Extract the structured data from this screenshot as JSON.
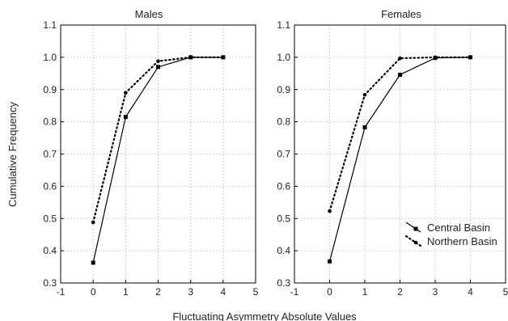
{
  "chart_data": [
    {
      "type": "line",
      "title": "Males",
      "xlim": [
        -1,
        5
      ],
      "ylim": [
        0.3,
        1.1
      ],
      "x_ticks": [
        "-1",
        "0",
        "1",
        "2",
        "3",
        "4",
        "5"
      ],
      "y_ticks": [
        "0.3",
        "0.4",
        "0.5",
        "0.6",
        "0.7",
        "0.8",
        "0.9",
        "1.0",
        "1.1"
      ],
      "grid": true,
      "series": [
        {
          "name": "Central Basin",
          "style": "solid",
          "marker": "square",
          "x": [
            0,
            1,
            2,
            3,
            4
          ],
          "values": [
            0.363,
            0.815,
            0.97,
            1.0,
            1.0
          ]
        },
        {
          "name": "Northern Basin",
          "style": "dotted",
          "marker": "circle",
          "x": [
            0,
            1,
            2,
            3,
            4
          ],
          "values": [
            0.488,
            0.89,
            0.988,
            1.0,
            1.0
          ]
        }
      ]
    },
    {
      "type": "line",
      "title": "Females",
      "xlim": [
        -1,
        5
      ],
      "ylim": [
        0.3,
        1.1
      ],
      "x_ticks": [
        "-1",
        "0",
        "1",
        "2",
        "3",
        "4",
        "5"
      ],
      "y_ticks": [
        "0.3",
        "0.4",
        "0.5",
        "0.6",
        "0.7",
        "0.8",
        "0.9",
        "1.0",
        "1.1"
      ],
      "grid": true,
      "legend": "right-lower",
      "series": [
        {
          "name": "Central Basin",
          "style": "solid",
          "marker": "square",
          "x": [
            0,
            1,
            2,
            3,
            4
          ],
          "values": [
            0.367,
            0.783,
            0.946,
            0.998,
            1.0
          ]
        },
        {
          "name": "Northern Basin",
          "style": "dotted",
          "marker": "circle",
          "x": [
            0,
            1,
            2,
            3,
            4
          ],
          "values": [
            0.523,
            0.884,
            0.997,
            1.0,
            1.0
          ]
        }
      ]
    }
  ],
  "ylabel": "Cumulative Frequency",
  "xlabel": "Fluctuating Asymmetry Absolute Values",
  "colors": {
    "line": "#000000",
    "grid": "#c8c8c8"
  }
}
